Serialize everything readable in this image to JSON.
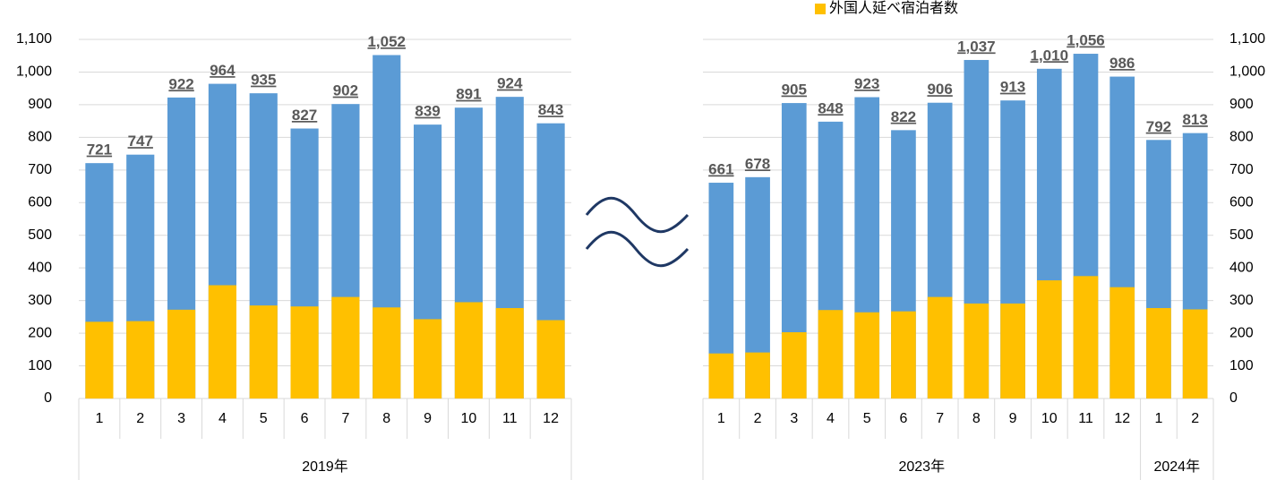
{
  "chart_data": [
    {
      "type": "bar",
      "yaxis": "left",
      "grid": true,
      "groups": [
        {
          "label": "2019年",
          "categories": [
            "1",
            "2",
            "3",
            "4",
            "5",
            "6",
            "7",
            "8",
            "9",
            "10",
            "11",
            "12"
          ]
        }
      ],
      "series": [
        {
          "color": "#5b9bd5",
          "values": [
            721,
            747,
            922,
            964,
            935,
            827,
            902,
            1052,
            839,
            891,
            924,
            843
          ],
          "value_labels": [
            "721",
            "747",
            "922",
            "964",
            "935",
            "827",
            "902",
            "1,052",
            "839",
            "891",
            "924",
            "843"
          ]
        },
        {
          "color": "#ffc000",
          "values": [
            235,
            237,
            272,
            347,
            285,
            282,
            311,
            279,
            243,
            295,
            277,
            240
          ]
        }
      ],
      "ylim": [
        0,
        1100
      ],
      "yticks": [
        0,
        100,
        200,
        300,
        400,
        500,
        600,
        700,
        800,
        900,
        {
          "value": 1000,
          "label": "1,000"
        },
        {
          "value": 1100,
          "label": "1,100"
        }
      ]
    },
    {
      "type": "bar",
      "yaxis": "right",
      "grid": true,
      "legend": "top",
      "groups": [
        {
          "label": "2023年",
          "categories": [
            "1",
            "2",
            "3",
            "4",
            "5",
            "6",
            "7",
            "8",
            "9",
            "10",
            "11",
            "12"
          ]
        },
        {
          "label": "2024年",
          "categories": [
            "1",
            "2"
          ]
        }
      ],
      "series": [
        {
          "color": "#5b9bd5",
          "values": [
            661,
            678,
            905,
            848,
            923,
            822,
            906,
            1037,
            913,
            1010,
            1056,
            986,
            792,
            813
          ],
          "value_labels": [
            "661",
            "678",
            "905",
            "848",
            "923",
            "822",
            "906",
            "1,037",
            "913",
            "1,010",
            "1,056",
            "986",
            "792",
            "813"
          ]
        },
        {
          "name": "外国人延べ宿泊者数",
          "color": "#ffc000",
          "values": [
            138,
            141,
            203,
            271,
            264,
            267,
            311,
            291,
            291,
            362,
            375,
            341,
            277,
            273
          ]
        }
      ],
      "ylim": [
        0,
        1100
      ],
      "yticks": [
        0,
        100,
        200,
        300,
        400,
        500,
        600,
        700,
        800,
        900,
        {
          "value": 1000,
          "label": "1,000"
        },
        {
          "value": 1100,
          "label": "1,100"
        }
      ]
    }
  ]
}
